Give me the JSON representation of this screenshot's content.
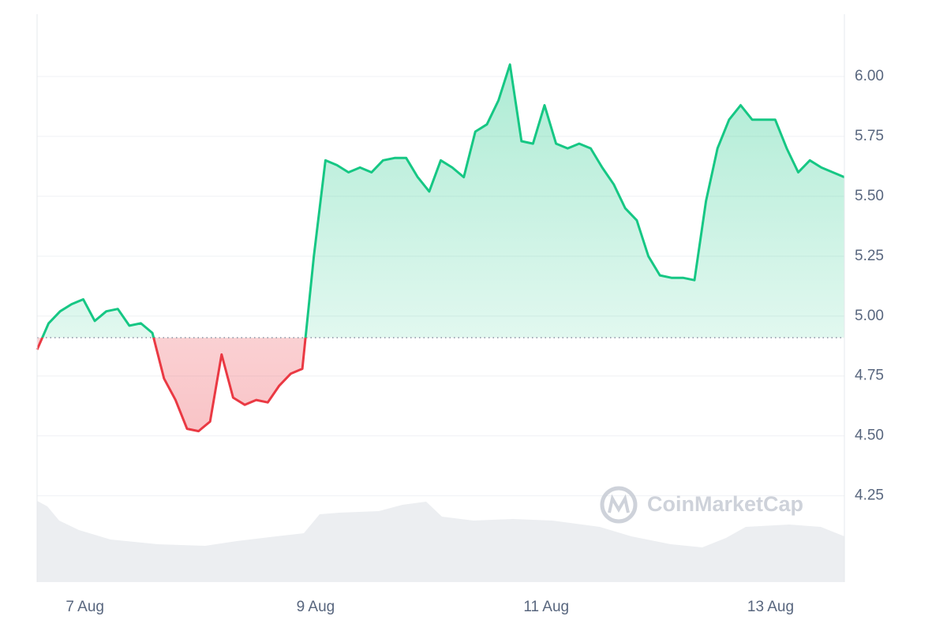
{
  "chart_data": {
    "type": "price-line",
    "watermark": "CoinMarketCap",
    "values": [
      4.86,
      4.97,
      5.02,
      5.05,
      5.07,
      4.98,
      5.02,
      5.03,
      4.96,
      4.97,
      4.93,
      4.74,
      4.65,
      4.53,
      4.52,
      4.56,
      4.84,
      4.66,
      4.63,
      4.65,
      4.64,
      4.71,
      4.76,
      4.78,
      5.25,
      5.65,
      5.63,
      5.6,
      5.62,
      5.6,
      5.65,
      5.66,
      5.66,
      5.58,
      5.52,
      5.65,
      5.62,
      5.58,
      5.77,
      5.8,
      5.9,
      6.05,
      5.73,
      5.72,
      5.88,
      5.72,
      5.7,
      5.72,
      5.7,
      5.62,
      5.55,
      5.45,
      5.4,
      5.25,
      5.17,
      5.16,
      5.16,
      5.15,
      5.48,
      5.7,
      5.82,
      5.88,
      5.82,
      5.82,
      5.82,
      5.7,
      5.6,
      5.65,
      5.62,
      5.6,
      5.58
    ],
    "baseline": 4.91,
    "up_color": "#16c784",
    "down_color": "#ea3943",
    "xlim": [
      0,
      70
    ],
    "xticks": [
      {
        "value": 4.15,
        "label": "7 Aug"
      },
      {
        "value": 24.15,
        "label": "9 Aug"
      },
      {
        "value": 44.15,
        "label": "11 Aug"
      },
      {
        "value": 63.6,
        "label": "13 Aug"
      }
    ],
    "ylim": [
      3.89,
      6.26
    ],
    "yticks": [
      4.25,
      {
        "value": 4.5,
        "label": "4.50"
      },
      4.75,
      {
        "value": 5,
        "label": "5.00"
      },
      5.25,
      {
        "value": 5.5,
        "label": "5.50"
      },
      5.75,
      {
        "value": 6,
        "label": "6.00"
      }
    ],
    "grid": true
  }
}
